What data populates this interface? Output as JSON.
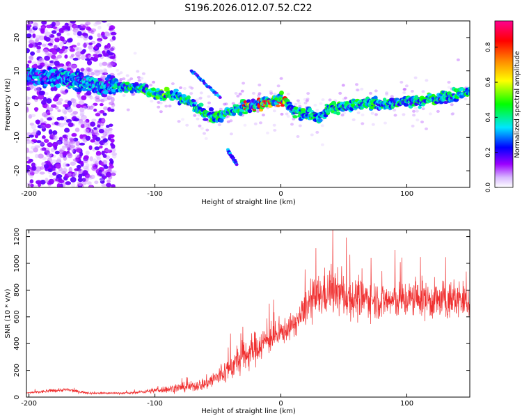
{
  "chart_data": [
    {
      "type": "heatmap",
      "title": "S196.2026.012.07.52.C22",
      "xlabel": "Height of straight line (km)",
      "ylabel": "Frequency (Hz)",
      "xlim": [
        -202,
        150
      ],
      "ylim": [
        -25,
        25
      ],
      "x_ticks": [
        -200,
        -100,
        0,
        100
      ],
      "y_ticks": [
        -20,
        -10,
        0,
        10,
        20
      ],
      "colorbar": {
        "label": "Normalized spectral amplitude",
        "range": [
          0.0,
          0.95
        ],
        "ticks": [
          0.0,
          0.2,
          0.4,
          0.6,
          0.8
        ],
        "colors": [
          "#ffffff",
          "#9c00ff",
          "#0000ff",
          "#00e6ff",
          "#00ff00",
          "#ffff00",
          "#ff8800",
          "#ff0000",
          "#ff0090"
        ]
      },
      "ridge": {
        "name": "dominant frequency track",
        "x": [
          -200,
          -190,
          -180,
          -170,
          -160,
          -150,
          -140,
          -130,
          -120,
          -110,
          -100,
          -90,
          -80,
          -70,
          -60,
          -50,
          -40,
          -30,
          -20,
          -10,
          0,
          10,
          20,
          30,
          40,
          50,
          60,
          70,
          80,
          90,
          100,
          110,
          120,
          130,
          140,
          150
        ],
        "y": [
          9,
          8,
          8,
          8,
          7,
          6,
          5,
          5.5,
          5,
          5,
          3,
          3,
          2,
          0,
          -3,
          -4,
          -2,
          -1,
          -0.5,
          0.5,
          1.5,
          -2,
          -3,
          -4,
          -1,
          -1,
          0,
          0.5,
          0,
          0.5,
          1,
          1,
          1.5,
          2,
          3,
          4
        ]
      },
      "secondary_tracks": [
        {
          "name": "branch",
          "x": [
            -71,
            -48
          ],
          "y": [
            10,
            2
          ]
        },
        {
          "name": "branch",
          "x": [
            -42,
            -35
          ],
          "y": [
            -14,
            -18
          ]
        }
      ]
    },
    {
      "type": "line",
      "xlabel": "Height of straight line (km)",
      "ylabel": "SNR (10 * v/v)",
      "xlim": [
        -202,
        150
      ],
      "ylim": [
        0,
        1250
      ],
      "x_ticks": [
        -200,
        -100,
        0,
        100
      ],
      "y_ticks": [
        0,
        200,
        400,
        600,
        800,
        1000,
        1200
      ],
      "series": [
        {
          "name": "SNR",
          "color": "#f03030",
          "x": [
            -202,
            -190,
            -180,
            -170,
            -160,
            -150,
            -140,
            -130,
            -120,
            -110,
            -100,
            -90,
            -80,
            -70,
            -60,
            -50,
            -40,
            -30,
            -20,
            -10,
            0,
            10,
            16,
            20,
            30,
            40,
            50,
            60,
            70,
            80,
            90,
            100,
            110,
            120,
            130,
            140,
            150
          ],
          "mean": [
            30,
            40,
            50,
            55,
            40,
            30,
            30,
            30,
            30,
            40,
            50,
            60,
            70,
            80,
            100,
            150,
            220,
            300,
            370,
            430,
            480,
            540,
            600,
            680,
            750,
            800,
            760,
            730,
            740,
            720,
            720,
            730,
            740,
            720,
            720,
            730,
            720
          ],
          "spread": [
            15,
            20,
            25,
            25,
            20,
            15,
            15,
            15,
            15,
            20,
            40,
            50,
            60,
            70,
            90,
            140,
            180,
            220,
            230,
            200,
            170,
            160,
            180,
            250,
            300,
            320,
            300,
            280,
            260,
            250,
            250,
            250,
            260,
            260,
            260,
            250,
            250
          ]
        }
      ]
    }
  ]
}
